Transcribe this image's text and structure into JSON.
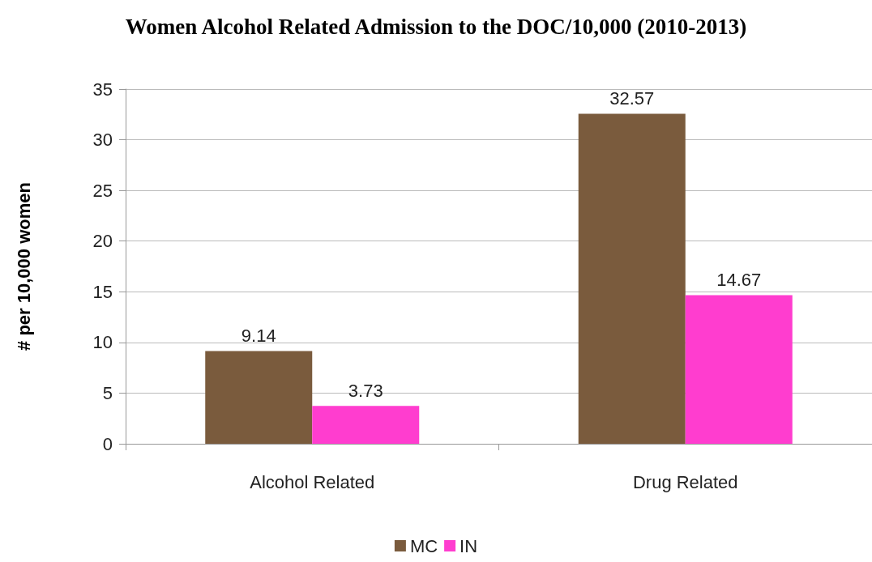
{
  "chart_data": {
    "type": "bar",
    "title": "Women Alcohol Related Admission to the DOC/10,000 (2010-2013)",
    "ylabel": "# per 10,000 women",
    "categories": [
      "Alcohol Related",
      "Drug Related"
    ],
    "series": [
      {
        "name": "MC",
        "color": "#7a5b3d",
        "values": [
          9.14,
          32.57
        ]
      },
      {
        "name": "IN",
        "color": "#ff3dcf",
        "values": [
          3.73,
          14.67
        ]
      }
    ],
    "ylim": [
      0,
      35
    ],
    "yticks": [
      0,
      5,
      10,
      15,
      20,
      25,
      30,
      35
    ],
    "grid": "y",
    "legend": "bottom",
    "data_labels": true
  }
}
